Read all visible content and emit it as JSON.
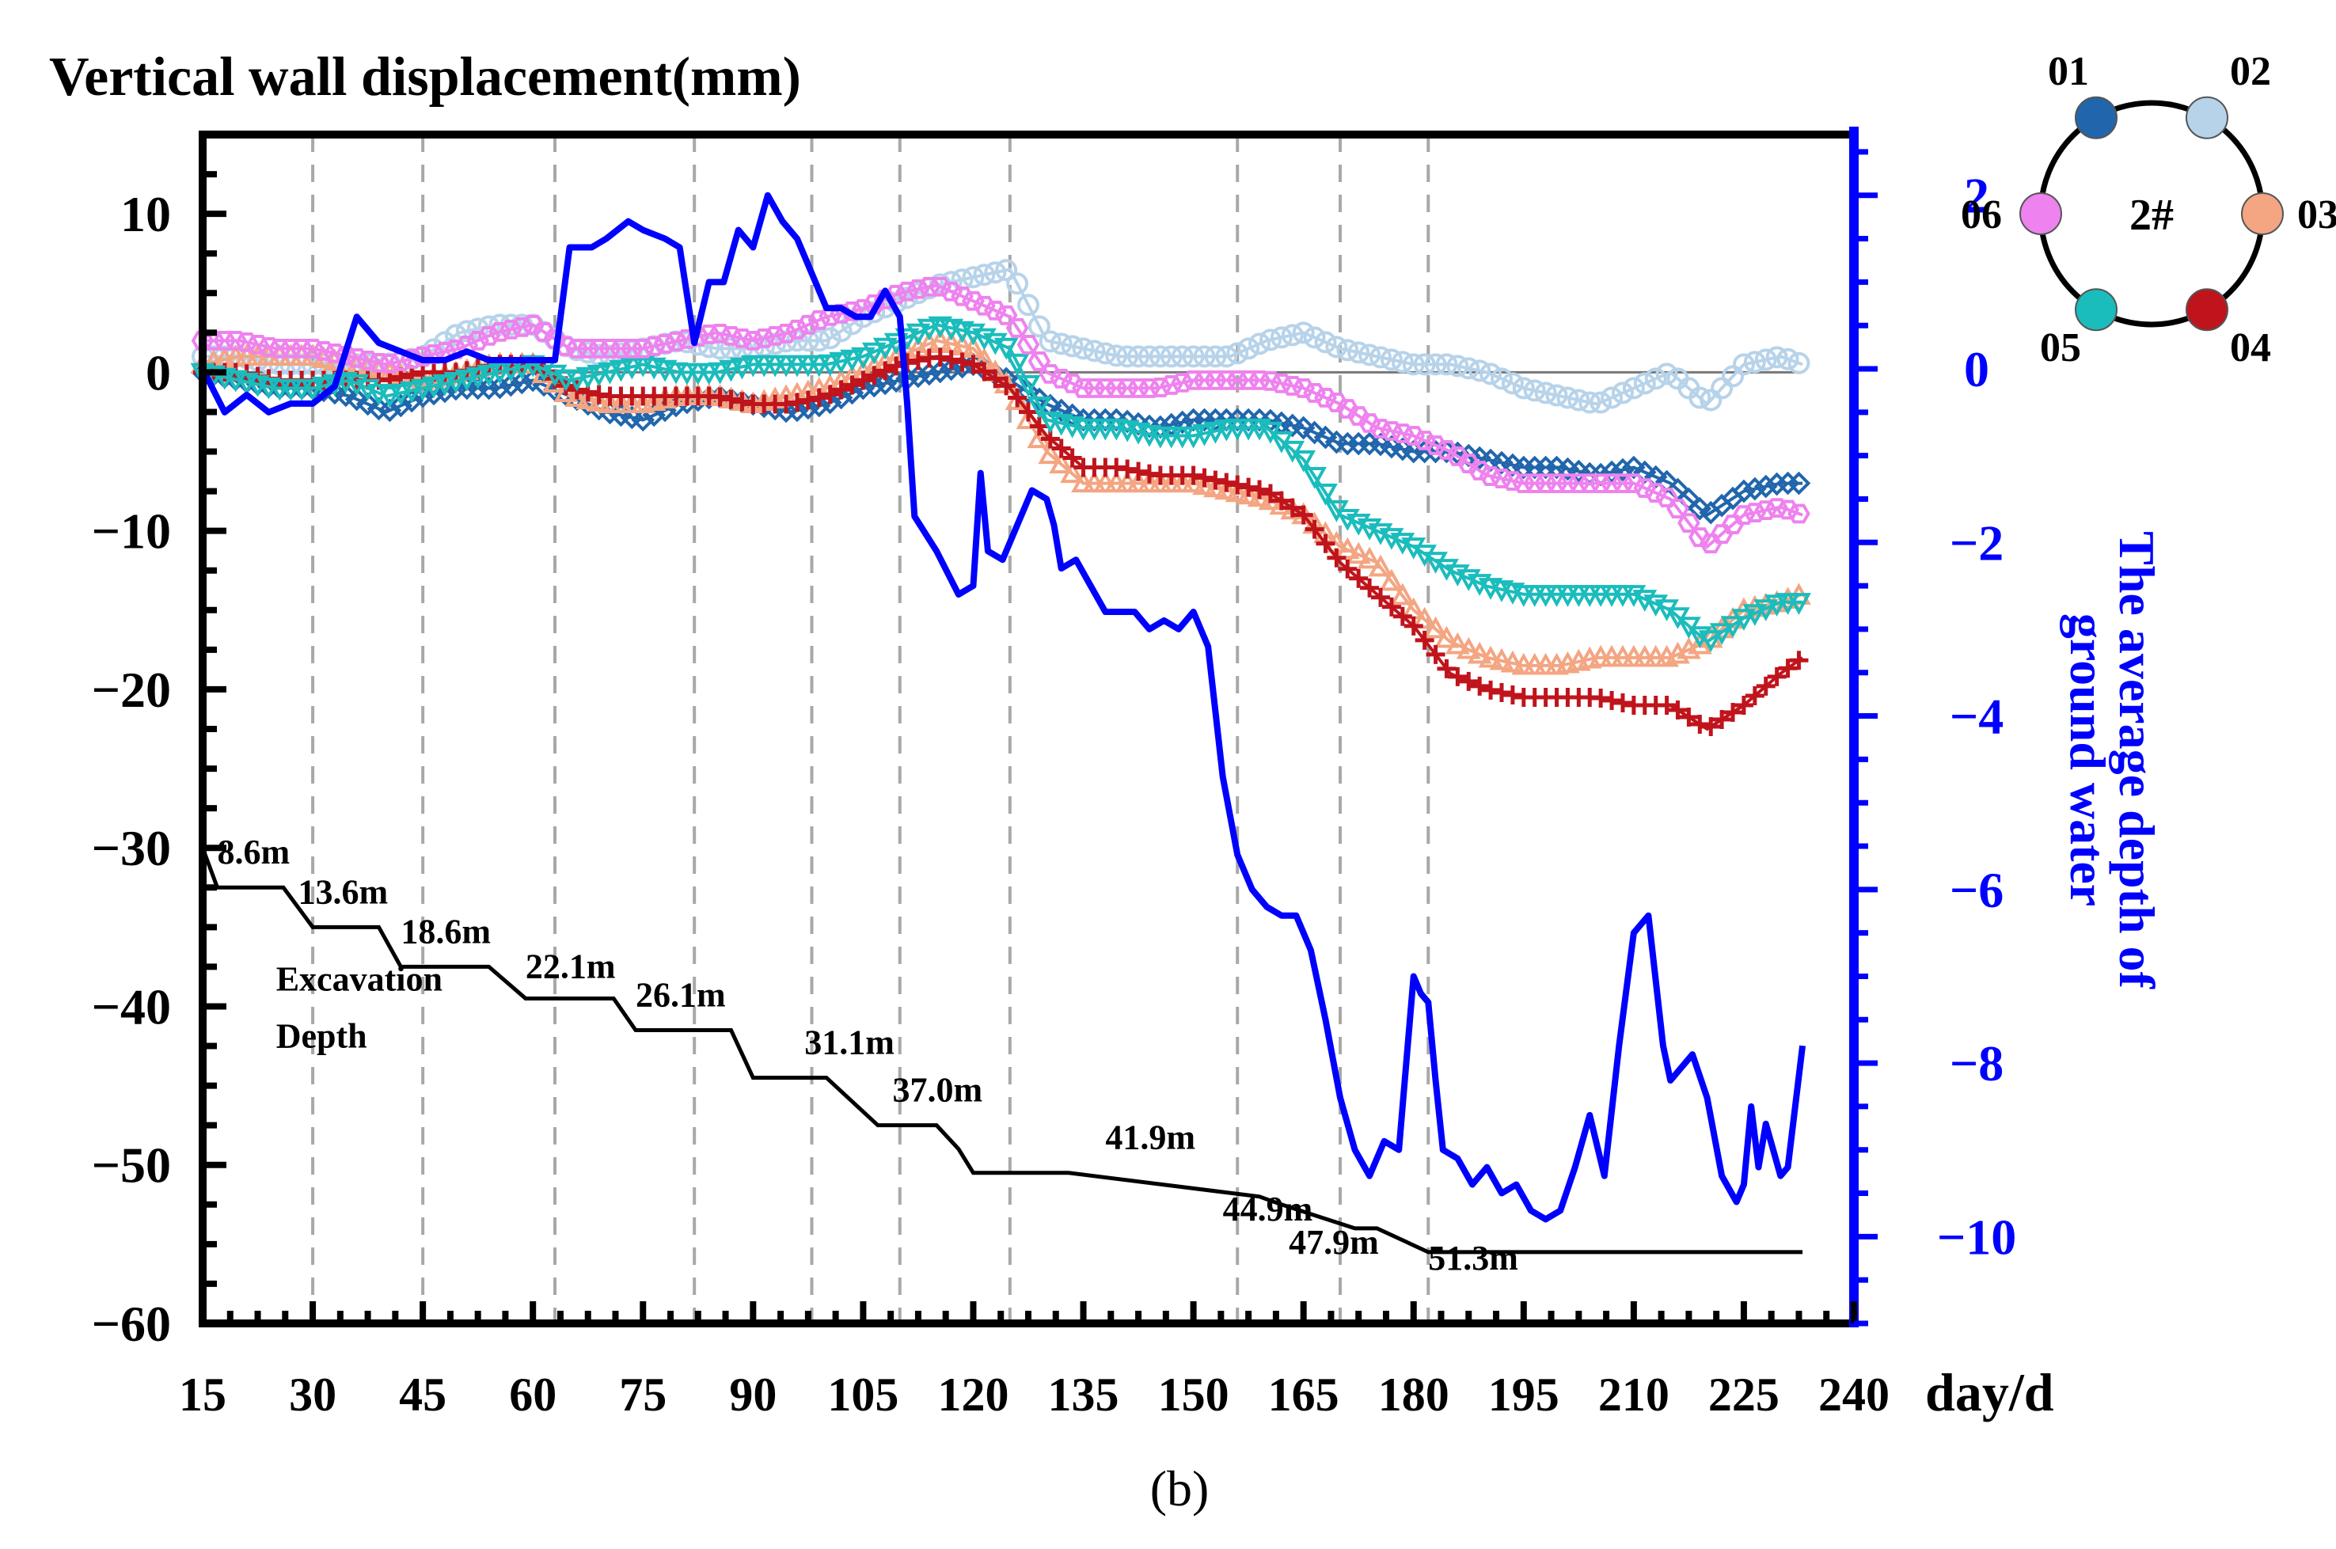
{
  "chart_data": {
    "type": "line",
    "title": "Vertical wall displacement(mm)",
    "panel_label": "(b)",
    "x_unit_label": "day/d",
    "xlim": [
      15,
      240
    ],
    "x_ticks": [
      15,
      30,
      45,
      60,
      75,
      90,
      105,
      120,
      135,
      150,
      165,
      180,
      195,
      210,
      225,
      240
    ],
    "ylim": [
      -60,
      15
    ],
    "y_ticks": [
      10,
      0,
      -10,
      -20,
      -30,
      -40,
      -50,
      -60
    ],
    "y2_label_lines": [
      "The average depth of",
      "ground water"
    ],
    "y2lim": [
      -11,
      2.7
    ],
    "y2_ticks": [
      2,
      0,
      -2,
      -4,
      -6,
      -8,
      -10
    ],
    "vertical_guides_x": [
      30,
      45,
      63,
      82,
      98,
      110,
      125,
      156,
      170,
      182
    ],
    "zero_reference_y": 0,
    "legend": {
      "center_label": "2#",
      "placement": "top-right",
      "items": [
        {
          "name": "01",
          "color": "#2166ac"
        },
        {
          "name": "02",
          "color": "#b7d3ea"
        },
        {
          "name": "03",
          "color": "#f4a582"
        },
        {
          "name": "04",
          "color": "#c0141c"
        },
        {
          "name": "05",
          "color": "#1bbcbc"
        },
        {
          "name": "06",
          "color": "#ee82ee"
        }
      ]
    },
    "series": [
      {
        "name": "01",
        "color": "#2166ac",
        "marker": "diamond",
        "x": [
          15,
          20,
          25,
          30,
          35,
          40,
          45,
          50,
          55,
          60,
          65,
          70,
          75,
          80,
          85,
          90,
          95,
          100,
          105,
          110,
          115,
          120,
          125,
          130,
          135,
          140,
          145,
          150,
          155,
          160,
          165,
          170,
          175,
          180,
          185,
          190,
          195,
          200,
          205,
          210,
          215,
          220,
          225,
          230,
          233
        ],
        "y": [
          0,
          -0.5,
          -1,
          -1,
          -1.5,
          -2.5,
          -1.5,
          -1,
          -1,
          -0.5,
          -1.5,
          -2.5,
          -3,
          -2,
          -1.5,
          -2,
          -2.5,
          -2,
          -1,
          -0.5,
          0,
          0.5,
          -0.5,
          -2,
          -3,
          -3,
          -3.5,
          -3,
          -3,
          -3,
          -3.5,
          -4.5,
          -4.5,
          -5,
          -5,
          -5.5,
          -6,
          -6,
          -6.5,
          -6,
          -7,
          -9,
          -7.5,
          -7,
          -7
        ]
      },
      {
        "name": "02",
        "color": "#b7d3ea",
        "marker": "circle",
        "x": [
          15,
          20,
          25,
          30,
          35,
          40,
          45,
          50,
          55,
          60,
          65,
          70,
          75,
          80,
          85,
          90,
          95,
          100,
          105,
          110,
          115,
          120,
          125,
          130,
          135,
          140,
          145,
          150,
          155,
          160,
          165,
          170,
          175,
          180,
          185,
          190,
          195,
          200,
          205,
          210,
          215,
          220,
          225,
          230,
          233
        ],
        "y": [
          1,
          1,
          0.5,
          0.5,
          0.5,
          0.5,
          1,
          2.5,
          3,
          3,
          1.5,
          1,
          1.5,
          2,
          1.5,
          1.5,
          2,
          2,
          3.5,
          4.5,
          5.5,
          6,
          6.5,
          2,
          1.5,
          1,
          1,
          1,
          1,
          2,
          2.5,
          1.5,
          1,
          0.5,
          0.5,
          0,
          -1,
          -1.5,
          -2,
          -1,
          0,
          -2,
          0.5,
          1,
          0.5
        ]
      },
      {
        "name": "03",
        "color": "#f4a582",
        "marker": "triangle-up",
        "x": [
          15,
          20,
          25,
          30,
          35,
          40,
          45,
          50,
          55,
          60,
          65,
          70,
          75,
          80,
          85,
          90,
          95,
          100,
          105,
          110,
          115,
          120,
          125,
          130,
          135,
          140,
          145,
          150,
          155,
          160,
          165,
          170,
          175,
          180,
          185,
          190,
          195,
          200,
          205,
          210,
          215,
          220,
          225,
          230,
          233
        ],
        "y": [
          0.5,
          1,
          1,
          1,
          0.5,
          0,
          -0.5,
          0,
          0.5,
          0.5,
          -1.5,
          -2,
          -2,
          -1.5,
          -1.5,
          -2,
          -1.5,
          -1,
          0,
          1,
          2,
          1.5,
          -1,
          -5,
          -7,
          -7,
          -7,
          -7,
          -7.5,
          -8,
          -9,
          -11,
          -12,
          -15,
          -17,
          -18,
          -18.5,
          -18.5,
          -18,
          -18,
          -18,
          -17,
          -15,
          -14.5,
          -14
        ]
      },
      {
        "name": "04",
        "color": "#c0141c",
        "marker": "plus",
        "x": [
          15,
          20,
          25,
          30,
          35,
          40,
          45,
          50,
          55,
          60,
          65,
          70,
          75,
          80,
          85,
          90,
          95,
          100,
          105,
          110,
          115,
          120,
          125,
          130,
          135,
          140,
          145,
          150,
          155,
          160,
          165,
          170,
          175,
          180,
          185,
          190,
          195,
          200,
          205,
          210,
          215,
          220,
          225,
          230,
          233
        ],
        "y": [
          0,
          0,
          -0.5,
          -0.5,
          -0.5,
          -0.5,
          0,
          0,
          0.5,
          0.5,
          -1,
          -1.5,
          -1.5,
          -1.5,
          -1.5,
          -2,
          -2,
          -1.5,
          -0.5,
          0.5,
          1,
          0.5,
          -1,
          -4,
          -6,
          -6,
          -6.5,
          -6.5,
          -7,
          -7.5,
          -9,
          -12,
          -14,
          -16,
          -19,
          -20,
          -20.5,
          -20.5,
          -20.5,
          -21,
          -21,
          -22.5,
          -21,
          -19,
          -18
        ]
      },
      {
        "name": "05",
        "color": "#1bbcbc",
        "marker": "triangle-down",
        "x": [
          15,
          20,
          25,
          30,
          35,
          40,
          45,
          50,
          55,
          60,
          65,
          70,
          75,
          80,
          85,
          90,
          95,
          100,
          105,
          110,
          115,
          120,
          125,
          130,
          135,
          140,
          145,
          150,
          155,
          160,
          165,
          170,
          175,
          180,
          185,
          190,
          195,
          200,
          205,
          210,
          215,
          220,
          225,
          230,
          233
        ],
        "y": [
          0,
          -0.5,
          -1,
          -1,
          -0.5,
          -1.5,
          -1,
          -0.5,
          0,
          0.5,
          -0.5,
          0,
          0.5,
          0,
          0,
          0.5,
          0.5,
          0.5,
          1,
          2,
          3,
          2.5,
          1.5,
          -3,
          -3.5,
          -3.5,
          -4,
          -4,
          -3.5,
          -3.5,
          -5.5,
          -9,
          -10,
          -11,
          -12.5,
          -13.5,
          -14,
          -14,
          -14,
          -14,
          -15,
          -17,
          -15.5,
          -14.5,
          -14.5
        ]
      },
      {
        "name": "06",
        "color": "#ee82ee",
        "marker": "hexagon",
        "x": [
          15,
          20,
          25,
          30,
          35,
          40,
          45,
          50,
          55,
          60,
          65,
          70,
          75,
          80,
          85,
          90,
          95,
          100,
          105,
          110,
          115,
          120,
          125,
          130,
          135,
          140,
          145,
          150,
          155,
          160,
          165,
          170,
          175,
          180,
          185,
          190,
          195,
          200,
          205,
          210,
          215,
          220,
          225,
          230,
          233
        ],
        "y": [
          2,
          2,
          1.5,
          1.5,
          1,
          0.5,
          1,
          1.5,
          2.5,
          3,
          1.5,
          1.5,
          1.5,
          2,
          2.5,
          2,
          2.5,
          3.5,
          4,
          5,
          5.5,
          4.5,
          3.5,
          0,
          -1,
          -1,
          -1,
          -0.5,
          -0.5,
          -0.5,
          -1,
          -2,
          -3.5,
          -4,
          -5,
          -6.5,
          -7,
          -7,
          -7,
          -7,
          -8,
          -11,
          -9,
          -8.5,
          -9
        ]
      },
      {
        "name": "ground water",
        "axis": "right",
        "color": "#0000ff",
        "marker": "none",
        "x": [
          15,
          18,
          21,
          24,
          27,
          30,
          33,
          36,
          39,
          42,
          45,
          48,
          51,
          54,
          57,
          60,
          63,
          65,
          68,
          70,
          73,
          75,
          78,
          80,
          82,
          84,
          86,
          88,
          90,
          92,
          94,
          96,
          98,
          100,
          102,
          104,
          106,
          108,
          110,
          111,
          112,
          115,
          118,
          120,
          121,
          122,
          124,
          126,
          128,
          130,
          131,
          132,
          134,
          136,
          138,
          140,
          142,
          144,
          146,
          148,
          150,
          152,
          154,
          156,
          158,
          160,
          162,
          164,
          166,
          168,
          170,
          172,
          174,
          176,
          178,
          180,
          181,
          182,
          183,
          184,
          186,
          188,
          190,
          192,
          194,
          196,
          198,
          200,
          202,
          204,
          206,
          208,
          210,
          212,
          214,
          215,
          216,
          218,
          220,
          222,
          224,
          225,
          226,
          227,
          228,
          230,
          231,
          232,
          233
        ],
        "y": [
          0,
          -0.5,
          -0.3,
          -0.5,
          -0.4,
          -0.4,
          -0.2,
          0.6,
          0.3,
          0.2,
          0.1,
          0.1,
          0.2,
          0.1,
          0.1,
          0.1,
          0.1,
          1.4,
          1.4,
          1.5,
          1.7,
          1.6,
          1.5,
          1.4,
          0.3,
          1.0,
          1.0,
          1.6,
          1.4,
          2.0,
          1.7,
          1.5,
          1.1,
          0.7,
          0.7,
          0.6,
          0.6,
          0.9,
          0.6,
          -0.4,
          -1.7,
          -2.1,
          -2.6,
          -2.5,
          -1.2,
          -2.1,
          -2.2,
          -1.8,
          -1.4,
          -1.5,
          -1.8,
          -2.3,
          -2.2,
          -2.5,
          -2.8,
          -2.8,
          -2.8,
          -3.0,
          -2.9,
          -3.0,
          -2.8,
          -3.2,
          -4.7,
          -5.6,
          -6.0,
          -6.2,
          -6.3,
          -6.3,
          -6.7,
          -7.5,
          -8.4,
          -9.0,
          -9.3,
          -8.9,
          -9.0,
          -7.0,
          -7.2,
          -7.3,
          -8.2,
          -9.0,
          -9.1,
          -9.4,
          -9.2,
          -9.5,
          -9.4,
          -9.7,
          -9.8,
          -9.7,
          -9.2,
          -8.6,
          -9.3,
          -7.8,
          -6.5,
          -6.3,
          -7.8,
          -8.2,
          -8.1,
          -7.9,
          -8.4,
          -9.3,
          -9.6,
          -9.4,
          -8.5,
          -9.2,
          -8.7,
          -9.3,
          -9.2,
          -8.5,
          -7.8
        ]
      },
      {
        "name": "Excavation Depth",
        "color": "#000000",
        "marker": "none",
        "x": [
          15,
          17,
          26,
          30,
          39,
          42,
          54,
          59,
          71,
          74,
          87,
          90,
          98,
          100,
          107,
          108,
          115,
          118,
          120,
          125,
          127,
          133,
          159,
          162,
          172,
          175,
          182,
          183,
          233
        ],
        "y": [
          -30,
          -32.5,
          -32.5,
          -35,
          -35,
          -37.5,
          -37.5,
          -39.5,
          -39.5,
          -41.5,
          -41.5,
          -44.5,
          -44.5,
          -44.5,
          -47.5,
          -47.5,
          -47.5,
          -49,
          -50.5,
          -50.5,
          -50.5,
          -50.5,
          -52,
          -52.5,
          -54,
          -54,
          -55.5,
          -55.5,
          -55.5
        ],
        "step_labels": [
          {
            "text": "8.6m",
            "x": 17,
            "y": -31
          },
          {
            "text": "13.6m",
            "x": 28,
            "y": -33.5
          },
          {
            "text": "18.6m",
            "x": 42,
            "y": -36
          },
          {
            "text": "22.1m",
            "x": 59,
            "y": -38.2
          },
          {
            "text": "26.1m",
            "x": 74,
            "y": -40
          },
          {
            "text": "31.1m",
            "x": 97,
            "y": -43
          },
          {
            "text": "37.0m",
            "x": 109,
            "y": -46
          },
          {
            "text": "41.9m",
            "x": 138,
            "y": -49
          },
          {
            "text": "44.9m",
            "x": 154,
            "y": -53.5
          },
          {
            "text": "47.9m",
            "x": 163,
            "y": -55.6
          },
          {
            "text": "51.3m",
            "x": 182,
            "y": -56.6
          }
        ],
        "annotation": {
          "lines": [
            "Excavation",
            "Depth"
          ],
          "x": 25,
          "y": -39
        }
      }
    ]
  }
}
